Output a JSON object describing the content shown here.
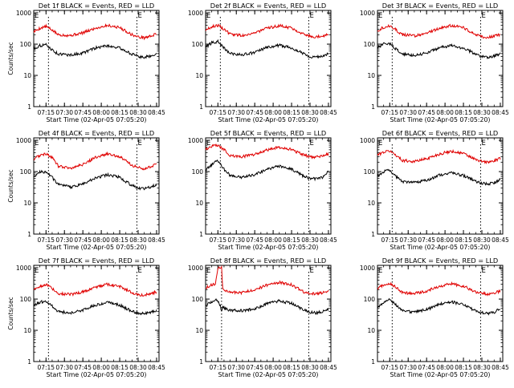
{
  "figure_title": "Detector count rates, BLACK = Events, RED = LLD",
  "colors": {
    "events": "#000000",
    "lld": "#e00000",
    "axes": "#000000",
    "background": "#ffffff"
  },
  "chart_data": [
    {
      "type": "line",
      "detector": "1f",
      "title": "Det 1f BLACK = Events, RED = LLD",
      "ylabel": "Counts/sec",
      "xlabel": "Start Time (02-Apr-05 07:05:20)",
      "xticks": [
        "07:15",
        "07:30",
        "07:45",
        "08:00",
        "08:15",
        "08:30",
        "08:45"
      ],
      "yticks": [
        "1",
        "10",
        "100",
        "1000"
      ],
      "x_range_min_after_start": [
        0,
        102
      ],
      "ylim": [
        1,
        1200
      ],
      "yscale": "log",
      "markers": [
        {
          "label": "E",
          "x": 0
        },
        {
          "label": "E",
          "x": 84
        }
      ],
      "vlines": [
        12,
        84
      ],
      "series": [
        {
          "name": "LLD",
          "color": "#e00000",
          "x": [
            0,
            5,
            10,
            15,
            20,
            30,
            40,
            50,
            60,
            70,
            80,
            85,
            90,
            95,
            100
          ],
          "values": [
            250,
            320,
            370,
            280,
            200,
            190,
            230,
            320,
            400,
            340,
            200,
            170,
            160,
            180,
            210
          ]
        },
        {
          "name": "Events",
          "color": "#000000",
          "x": [
            0,
            5,
            10,
            15,
            20,
            30,
            40,
            50,
            60,
            70,
            80,
            85,
            90,
            95,
            100
          ],
          "values": [
            70,
            90,
            95,
            65,
            48,
            45,
            52,
            75,
            90,
            75,
            48,
            40,
            38,
            42,
            50
          ]
        }
      ]
    },
    {
      "type": "line",
      "detector": "2f",
      "title": "Det 2f BLACK = Events, RED = LLD",
      "ylabel": "",
      "xlabel": "Start Time (02-Apr-05 07:05:20)",
      "xticks": [
        "07:15",
        "07:30",
        "07:45",
        "08:00",
        "08:15",
        "08:30",
        "08:45"
      ],
      "yticks": [
        "1",
        "10",
        "100",
        "1000"
      ],
      "x_range_min_after_start": [
        0,
        102
      ],
      "ylim": [
        1,
        1200
      ],
      "yscale": "log",
      "markers": [
        {
          "label": "E",
          "x": 0
        },
        {
          "label": "E",
          "x": 84
        }
      ],
      "vlines": [
        12,
        84
      ],
      "series": [
        {
          "name": "LLD",
          "color": "#e00000",
          "x": [
            0,
            5,
            10,
            15,
            20,
            30,
            40,
            50,
            60,
            70,
            80,
            85,
            90,
            95,
            100
          ],
          "values": [
            280,
            360,
            400,
            300,
            210,
            190,
            230,
            320,
            390,
            330,
            210,
            180,
            170,
            185,
            200
          ]
        },
        {
          "name": "Events",
          "color": "#000000",
          "x": [
            0,
            5,
            10,
            15,
            20,
            30,
            40,
            50,
            60,
            70,
            80,
            85,
            90,
            95,
            100
          ],
          "values": [
            80,
            110,
            120,
            75,
            50,
            46,
            54,
            78,
            92,
            76,
            50,
            40,
            38,
            42,
            48
          ]
        }
      ]
    },
    {
      "type": "line",
      "detector": "3f",
      "title": "Det 3f BLACK = Events, RED = LLD",
      "ylabel": "",
      "xlabel": "Start Time (02-Apr-05 07:05:20)",
      "xticks": [
        "07:15",
        "07:30",
        "07:45",
        "08:00",
        "08:15",
        "08:30",
        "08:45"
      ],
      "yticks": [
        "1",
        "10",
        "100",
        "1000"
      ],
      "x_range_min_after_start": [
        0,
        102
      ],
      "ylim": [
        1,
        1200
      ],
      "yscale": "log",
      "markers": [
        {
          "label": "E",
          "x": 0
        },
        {
          "label": "E",
          "x": 84
        }
      ],
      "vlines": [
        12,
        84
      ],
      "series": [
        {
          "name": "LLD",
          "color": "#e00000",
          "x": [
            0,
            5,
            10,
            15,
            20,
            30,
            40,
            50,
            60,
            70,
            80,
            85,
            90,
            95,
            100
          ],
          "values": [
            270,
            350,
            390,
            290,
            200,
            185,
            225,
            315,
            395,
            335,
            205,
            175,
            165,
            180,
            200
          ]
        },
        {
          "name": "Events",
          "color": "#000000",
          "x": [
            0,
            5,
            10,
            15,
            20,
            30,
            40,
            50,
            60,
            70,
            80,
            85,
            90,
            95,
            100
          ],
          "values": [
            75,
            100,
            105,
            70,
            48,
            44,
            52,
            76,
            90,
            74,
            48,
            40,
            38,
            42,
            48
          ]
        }
      ]
    },
    {
      "type": "line",
      "detector": "4f",
      "title": "Det 4f BLACK = Events, RED = LLD",
      "ylabel": "Counts/sec",
      "xlabel": "Start Time (02-Apr-05 07:05:20)",
      "xticks": [
        "07:15",
        "07:30",
        "07:45",
        "08:00",
        "08:15",
        "08:30",
        "08:45"
      ],
      "yticks": [
        "1",
        "10",
        "100",
        "1000"
      ],
      "x_range_min_after_start": [
        0,
        102
      ],
      "ylim": [
        1,
        1200
      ],
      "yscale": "log",
      "markers": [
        {
          "label": "E",
          "x": 0
        },
        {
          "label": "E",
          "x": 84
        }
      ],
      "vlines": [
        12,
        84
      ],
      "series": [
        {
          "name": "LLD",
          "color": "#e00000",
          "x": [
            0,
            5,
            10,
            15,
            20,
            30,
            40,
            50,
            60,
            70,
            80,
            85,
            90,
            95,
            100
          ],
          "values": [
            250,
            330,
            380,
            280,
            150,
            130,
            170,
            280,
            370,
            300,
            160,
            135,
            125,
            140,
            170
          ]
        },
        {
          "name": "Events",
          "color": "#000000",
          "x": [
            0,
            5,
            10,
            15,
            20,
            30,
            40,
            50,
            60,
            70,
            80,
            85,
            90,
            95,
            100
          ],
          "values": [
            70,
            95,
            100,
            65,
            38,
            32,
            40,
            62,
            80,
            65,
            36,
            30,
            28,
            32,
            38
          ]
        }
      ]
    },
    {
      "type": "line",
      "detector": "5f",
      "title": "Det 5f BLACK = Events, RED = LLD",
      "ylabel": "",
      "xlabel": "Start Time (02-Apr-05 07:05:20)",
      "xticks": [
        "07:15",
        "07:30",
        "07:45",
        "08:00",
        "08:15",
        "08:30",
        "08:45"
      ],
      "yticks": [
        "1",
        "10",
        "100",
        "1000"
      ],
      "x_range_min_after_start": [
        0,
        102
      ],
      "ylim": [
        1,
        1200
      ],
      "yscale": "log",
      "markers": [
        {
          "label": "E",
          "x": 0
        },
        {
          "label": "E",
          "x": 84
        }
      ],
      "vlines": [
        12,
        84
      ],
      "series": [
        {
          "name": "LLD",
          "color": "#e00000",
          "x": [
            0,
            5,
            10,
            15,
            20,
            30,
            40,
            50,
            60,
            70,
            80,
            85,
            90,
            95,
            100
          ],
          "values": [
            500,
            650,
            700,
            500,
            330,
            300,
            360,
            500,
            600,
            500,
            340,
            300,
            290,
            320,
            360
          ]
        },
        {
          "name": "Events",
          "color": "#000000",
          "x": [
            0,
            5,
            10,
            15,
            20,
            30,
            40,
            50,
            60,
            70,
            80,
            85,
            90,
            95,
            100
          ],
          "values": [
            110,
            170,
            230,
            120,
            75,
            65,
            80,
            120,
            150,
            120,
            70,
            60,
            58,
            65,
            100
          ]
        }
      ]
    },
    {
      "type": "line",
      "detector": "6f",
      "title": "Det 6f BLACK = Events, RED = LLD",
      "ylabel": "",
      "xlabel": "Start Time (02-Apr-05 07:05:20)",
      "xticks": [
        "07:15",
        "07:30",
        "07:45",
        "08:00",
        "08:15",
        "08:30",
        "08:45"
      ],
      "yticks": [
        "1",
        "10",
        "100",
        "1000"
      ],
      "x_range_min_after_start": [
        0,
        102
      ],
      "ylim": [
        1,
        1200
      ],
      "yscale": "log",
      "markers": [
        {
          "label": "E",
          "x": 0
        },
        {
          "label": "E",
          "x": 84
        }
      ],
      "vlines": [
        12,
        84
      ],
      "series": [
        {
          "name": "LLD",
          "color": "#e00000",
          "x": [
            0,
            5,
            10,
            15,
            20,
            30,
            40,
            50,
            60,
            70,
            80,
            85,
            90,
            95,
            100
          ],
          "values": [
            340,
            420,
            460,
            340,
            230,
            210,
            260,
            360,
            450,
            380,
            240,
            210,
            200,
            220,
            260
          ]
        },
        {
          "name": "Events",
          "color": "#000000",
          "x": [
            0,
            5,
            10,
            15,
            20,
            30,
            40,
            50,
            60,
            70,
            80,
            85,
            90,
            95,
            100
          ],
          "values": [
            70,
            100,
            110,
            70,
            48,
            44,
            52,
            76,
            92,
            75,
            48,
            42,
            40,
            44,
            55
          ]
        }
      ]
    },
    {
      "type": "line",
      "detector": "7f",
      "title": "Det 7f BLACK = Events, RED = LLD",
      "ylabel": "Counts/sec",
      "xlabel": "Start Time (02-Apr-05 07:05:20)",
      "xticks": [
        "07:15",
        "07:30",
        "07:45",
        "08:00",
        "08:15",
        "08:30",
        "08:45"
      ],
      "yticks": [
        "1",
        "10",
        "100",
        "1000"
      ],
      "x_range_min_after_start": [
        0,
        102
      ],
      "ylim": [
        1,
        1200
      ],
      "yscale": "log",
      "markers": [
        {
          "label": "E",
          "x": 0
        },
        {
          "label": "E",
          "x": 84
        }
      ],
      "vlines": [
        12,
        84
      ],
      "series": [
        {
          "name": "LLD",
          "color": "#e00000",
          "x": [
            0,
            5,
            10,
            15,
            20,
            30,
            40,
            50,
            60,
            70,
            80,
            85,
            90,
            95,
            100
          ],
          "values": [
            200,
            260,
            290,
            220,
            150,
            140,
            170,
            240,
            300,
            250,
            160,
            140,
            135,
            150,
            170
          ]
        },
        {
          "name": "Events",
          "color": "#000000",
          "x": [
            0,
            5,
            10,
            15,
            20,
            30,
            40,
            50,
            60,
            70,
            80,
            85,
            90,
            95,
            100
          ],
          "values": [
            60,
            80,
            85,
            60,
            40,
            36,
            44,
            64,
            80,
            64,
            40,
            36,
            34,
            38,
            44
          ]
        }
      ]
    },
    {
      "type": "line",
      "detector": "8f",
      "title": "Det 8f BLACK = Events, RED = LLD",
      "ylabel": "",
      "xlabel": "Start Time (02-Apr-05 07:05:20)",
      "xticks": [
        "07:15",
        "07:30",
        "07:45",
        "08:00",
        "08:15",
        "08:30",
        "08:45"
      ],
      "yticks": [
        "1",
        "10",
        "100",
        "1000"
      ],
      "x_range_min_after_start": [
        0,
        102
      ],
      "ylim": [
        1,
        1200
      ],
      "yscale": "log",
      "markers": [
        {
          "label": "E",
          "x": 0
        },
        {
          "label": "E",
          "x": 84
        }
      ],
      "vlines": [
        13,
        84
      ],
      "series": [
        {
          "name": "LLD",
          "color": "#e00000",
          "x": [
            0,
            4,
            8,
            10,
            11,
            12,
            13,
            14,
            18,
            30,
            40,
            50,
            60,
            70,
            80,
            85,
            90,
            95,
            100
          ],
          "values": [
            220,
            280,
            300,
            1000,
            1000,
            1000,
            1000,
            220,
            170,
            160,
            200,
            280,
            340,
            290,
            170,
            150,
            145,
            160,
            190
          ]
        },
        {
          "name": "Events",
          "color": "#000000",
          "x": [
            0,
            4,
            8,
            10,
            12,
            13,
            14,
            18,
            30,
            40,
            50,
            60,
            70,
            80,
            85,
            90,
            95,
            100
          ],
          "values": [
            60,
            80,
            95,
            85,
            60,
            40,
            55,
            45,
            42,
            50,
            70,
            88,
            72,
            46,
            38,
            36,
            40,
            48
          ]
        }
      ]
    },
    {
      "type": "line",
      "detector": "9f",
      "title": "Det 9f BLACK = Events, RED = LLD",
      "ylabel": "",
      "xlabel": "Start Time (02-Apr-05 07:05:20)",
      "xticks": [
        "07:15",
        "07:30",
        "07:45",
        "08:00",
        "08:15",
        "08:30",
        "08:45"
      ],
      "yticks": [
        "1",
        "10",
        "100",
        "1000"
      ],
      "x_range_min_after_start": [
        0,
        102
      ],
      "ylim": [
        1,
        1200
      ],
      "yscale": "log",
      "markers": [
        {
          "label": "E",
          "x": 0
        },
        {
          "label": "E",
          "x": 84
        }
      ],
      "vlines": [
        12,
        84
      ],
      "series": [
        {
          "name": "LLD",
          "color": "#e00000",
          "x": [
            0,
            5,
            10,
            15,
            20,
            30,
            40,
            50,
            60,
            70,
            80,
            85,
            90,
            95,
            100
          ],
          "values": [
            220,
            280,
            320,
            240,
            160,
            150,
            180,
            250,
            310,
            260,
            170,
            150,
            145,
            160,
            180
          ]
        },
        {
          "name": "Events",
          "color": "#000000",
          "x": [
            0,
            5,
            10,
            15,
            20,
            30,
            40,
            50,
            60,
            70,
            80,
            85,
            90,
            95,
            100
          ],
          "values": [
            55,
            80,
            100,
            65,
            42,
            38,
            46,
            66,
            82,
            66,
            42,
            36,
            34,
            38,
            50
          ]
        }
      ]
    }
  ]
}
